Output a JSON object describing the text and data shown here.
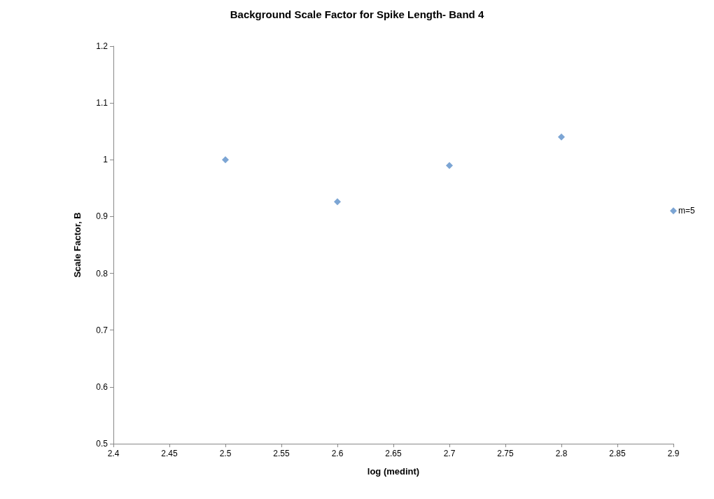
{
  "chart_data": {
    "type": "scatter",
    "title": "Background Scale Factor for Spike Length- Band 4",
    "xlabel": "log (medint)",
    "ylabel": "Scale Factor, B",
    "x": [
      2.5,
      2.6,
      2.7,
      2.8,
      2.9
    ],
    "series": [
      {
        "color": "#5b8fc9",
        "values": [
          1.0,
          0.926,
          0.99,
          1.04,
          0.91
        ]
      }
    ],
    "annotations": [
      {
        "text": "m=5",
        "x": 2.9,
        "y": 0.91
      }
    ],
    "xlim": [
      2.4,
      2.9
    ],
    "xticks": [
      2.4,
      2.45,
      2.5,
      2.55,
      2.6,
      2.65,
      2.7,
      2.75,
      2.8,
      2.85,
      2.9
    ],
    "ylim": [
      0.5,
      1.2
    ],
    "yticks": [
      0.5,
      0.6,
      0.7,
      0.8,
      0.9,
      1,
      1.1,
      1.2
    ],
    "grid": false,
    "marker": "diamond"
  }
}
